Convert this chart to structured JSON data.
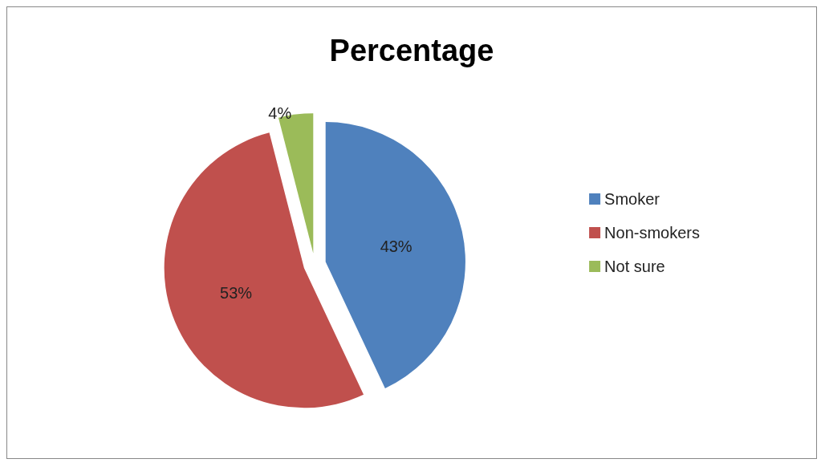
{
  "chart_data": {
    "type": "pie",
    "title": "Percentage",
    "categories": [
      "Smoker",
      "Non-smokers",
      "Not sure"
    ],
    "values": [
      43,
      53,
      4
    ],
    "colors": [
      "#4f81bd",
      "#c0504d",
      "#9bbb59"
    ],
    "value_labels": [
      "43%",
      "53%",
      "4%"
    ],
    "legend": "right"
  }
}
